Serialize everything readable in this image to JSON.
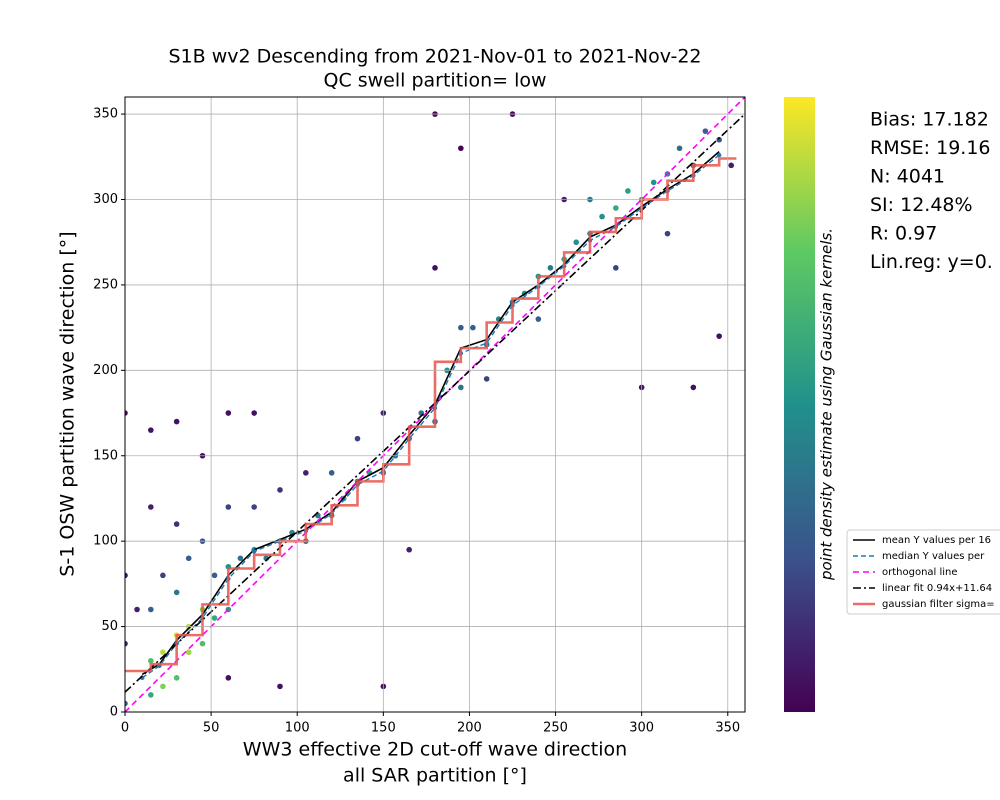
{
  "chart_data": {
    "type": "scatter",
    "title": "S1B wv2 Descending from 2021-Nov-01 to 2021-Nov-22",
    "subtitle": "QC swell partition= low",
    "xlabel": [
      "WW3 effective 2D cut-off wave direction",
      "all SAR partition [°]"
    ],
    "ylabel": "S-1 OSW partition wave direction [°]",
    "colorbar_label": "point density estimate using Gaussian kernels.",
    "colormap": [
      "#440154",
      "#3b528b",
      "#21918c",
      "#5ec962",
      "#fde725"
    ],
    "xlim": [
      0,
      360
    ],
    "ylim": [
      0,
      360
    ],
    "xticks": [
      0,
      50,
      100,
      150,
      200,
      250,
      300,
      350
    ],
    "yticks": [
      0,
      50,
      100,
      150,
      200,
      250,
      300,
      350
    ],
    "grid": true,
    "x": [
      0,
      0,
      0,
      0,
      7,
      15,
      15,
      15,
      15,
      15,
      22,
      22,
      22,
      30,
      30,
      30,
      30,
      30,
      37,
      37,
      37,
      45,
      45,
      45,
      45,
      52,
      52,
      60,
      60,
      60,
      60,
      60,
      67,
      75,
      75,
      75,
      82,
      90,
      90,
      90,
      97,
      105,
      105,
      112,
      120,
      120,
      127,
      135,
      135,
      142,
      150,
      150,
      150,
      157,
      165,
      165,
      172,
      180,
      180,
      180,
      187,
      195,
      195,
      195,
      202,
      210,
      210,
      217,
      225,
      225,
      232,
      240,
      240,
      247,
      255,
      255,
      262,
      270,
      270,
      277,
      285,
      285,
      292,
      300,
      300,
      307,
      315,
      315,
      322,
      330,
      330,
      337,
      345,
      345,
      352
    ],
    "y": [
      5,
      40,
      80,
      175,
      60,
      10,
      30,
      60,
      120,
      165,
      15,
      35,
      80,
      20,
      45,
      70,
      110,
      170,
      35,
      50,
      90,
      40,
      60,
      100,
      150,
      55,
      80,
      60,
      85,
      120,
      175,
      20,
      90,
      95,
      120,
      175,
      90,
      100,
      130,
      15,
      105,
      100,
      140,
      115,
      115,
      140,
      125,
      135,
      160,
      140,
      140,
      175,
      15,
      150,
      160,
      95,
      175,
      170,
      260,
      350,
      200,
      190,
      225,
      330,
      225,
      215,
      195,
      230,
      240,
      350,
      245,
      255,
      230,
      260,
      265,
      300,
      275,
      280,
      300,
      290,
      295,
      260,
      305,
      300,
      190,
      310,
      315,
      280,
      330,
      320,
      190,
      340,
      335,
      220,
      320
    ],
    "density": [
      0.3,
      0.1,
      0.05,
      0.02,
      0.1,
      0.6,
      0.7,
      0.3,
      0.1,
      0.05,
      0.8,
      0.9,
      0.2,
      0.7,
      0.95,
      0.4,
      0.15,
      0.05,
      0.85,
      0.9,
      0.3,
      0.7,
      0.8,
      0.25,
      0.05,
      0.6,
      0.3,
      0.55,
      0.5,
      0.2,
      0.05,
      0.05,
      0.4,
      0.5,
      0.2,
      0.05,
      0.4,
      0.45,
      0.15,
      0.05,
      0.45,
      0.35,
      0.1,
      0.4,
      0.5,
      0.3,
      0.6,
      0.5,
      0.2,
      0.55,
      0.5,
      0.1,
      0.05,
      0.4,
      0.4,
      0.1,
      0.4,
      0.35,
      0.05,
      0.02,
      0.5,
      0.4,
      0.3,
      0.02,
      0.3,
      0.4,
      0.2,
      0.45,
      0.4,
      0.02,
      0.5,
      0.5,
      0.3,
      0.4,
      0.6,
      0.1,
      0.5,
      0.5,
      0.4,
      0.5,
      0.6,
      0.2,
      0.55,
      0.6,
      0.05,
      0.5,
      0.5,
      0.2,
      0.35,
      0.4,
      0.05,
      0.3,
      0.25,
      0.05,
      0.1
    ],
    "lines": [
      {
        "name": "mean Y values per 16",
        "color": "#000000",
        "style": "solid",
        "x": [
          10,
          20,
          30,
          45,
          60,
          75,
          90,
          105,
          120,
          135,
          150,
          165,
          180,
          195,
          210,
          225,
          240,
          255,
          270,
          285,
          300,
          315,
          330,
          345
        ],
        "y": [
          22,
          28,
          42,
          57,
          80,
          95,
          101,
          107,
          117,
          135,
          143,
          162,
          180,
          213,
          218,
          240,
          250,
          262,
          278,
          285,
          296,
          306,
          315,
          328
        ]
      },
      {
        "name": "median Y values per",
        "color": "#1f77b4",
        "style": "dashed-dot-marker",
        "x": [
          10,
          20,
          30,
          45,
          60,
          75,
          90,
          105,
          120,
          135,
          150,
          165,
          180,
          195,
          210,
          225,
          240,
          255,
          270,
          285,
          300,
          315,
          330,
          345
        ],
        "y": [
          20,
          27,
          40,
          55,
          78,
          94,
          100,
          106,
          116,
          133,
          141,
          160,
          178,
          210,
          216,
          238,
          249,
          261,
          276,
          284,
          295,
          305,
          314,
          326
        ]
      },
      {
        "name": "orthogonal line",
        "color": "#ff00ff",
        "style": "dashed",
        "x": [
          0,
          360
        ],
        "y": [
          0,
          360
        ]
      },
      {
        "name": "linear fit 0.94x+11.64",
        "color": "#000000",
        "style": "dashdot",
        "x": [
          0,
          360
        ],
        "y": [
          11.64,
          350.04
        ]
      },
      {
        "name": "gaussian filter sigma=",
        "color": "#e8534a",
        "style": "thick",
        "x": [
          0,
          15,
          15,
          30,
          30,
          45,
          45,
          60,
          60,
          75,
          75,
          90,
          90,
          105,
          105,
          120,
          120,
          135,
          135,
          150,
          150,
          165,
          165,
          180,
          180,
          195,
          195,
          210,
          210,
          225,
          225,
          240,
          240,
          255,
          255,
          270,
          270,
          285,
          285,
          300,
          300,
          315,
          315,
          330,
          330,
          345,
          345,
          355
        ],
        "y": [
          24,
          24,
          28,
          28,
          45,
          45,
          63,
          63,
          84,
          84,
          92,
          92,
          100,
          100,
          110,
          110,
          121,
          121,
          135,
          135,
          145,
          145,
          167,
          167,
          205,
          205,
          213,
          213,
          228,
          228,
          242,
          242,
          255,
          255,
          269,
          269,
          281,
          281,
          289,
          289,
          300,
          300,
          311,
          311,
          320,
          320,
          324,
          324
        ]
      }
    ],
    "stats": [
      "Bias: 17.182",
      "RMSE: 19.16",
      "N: 4041",
      "SI: 12.48%",
      "R: 0.97",
      "Lin.reg: y=0."
    ]
  }
}
